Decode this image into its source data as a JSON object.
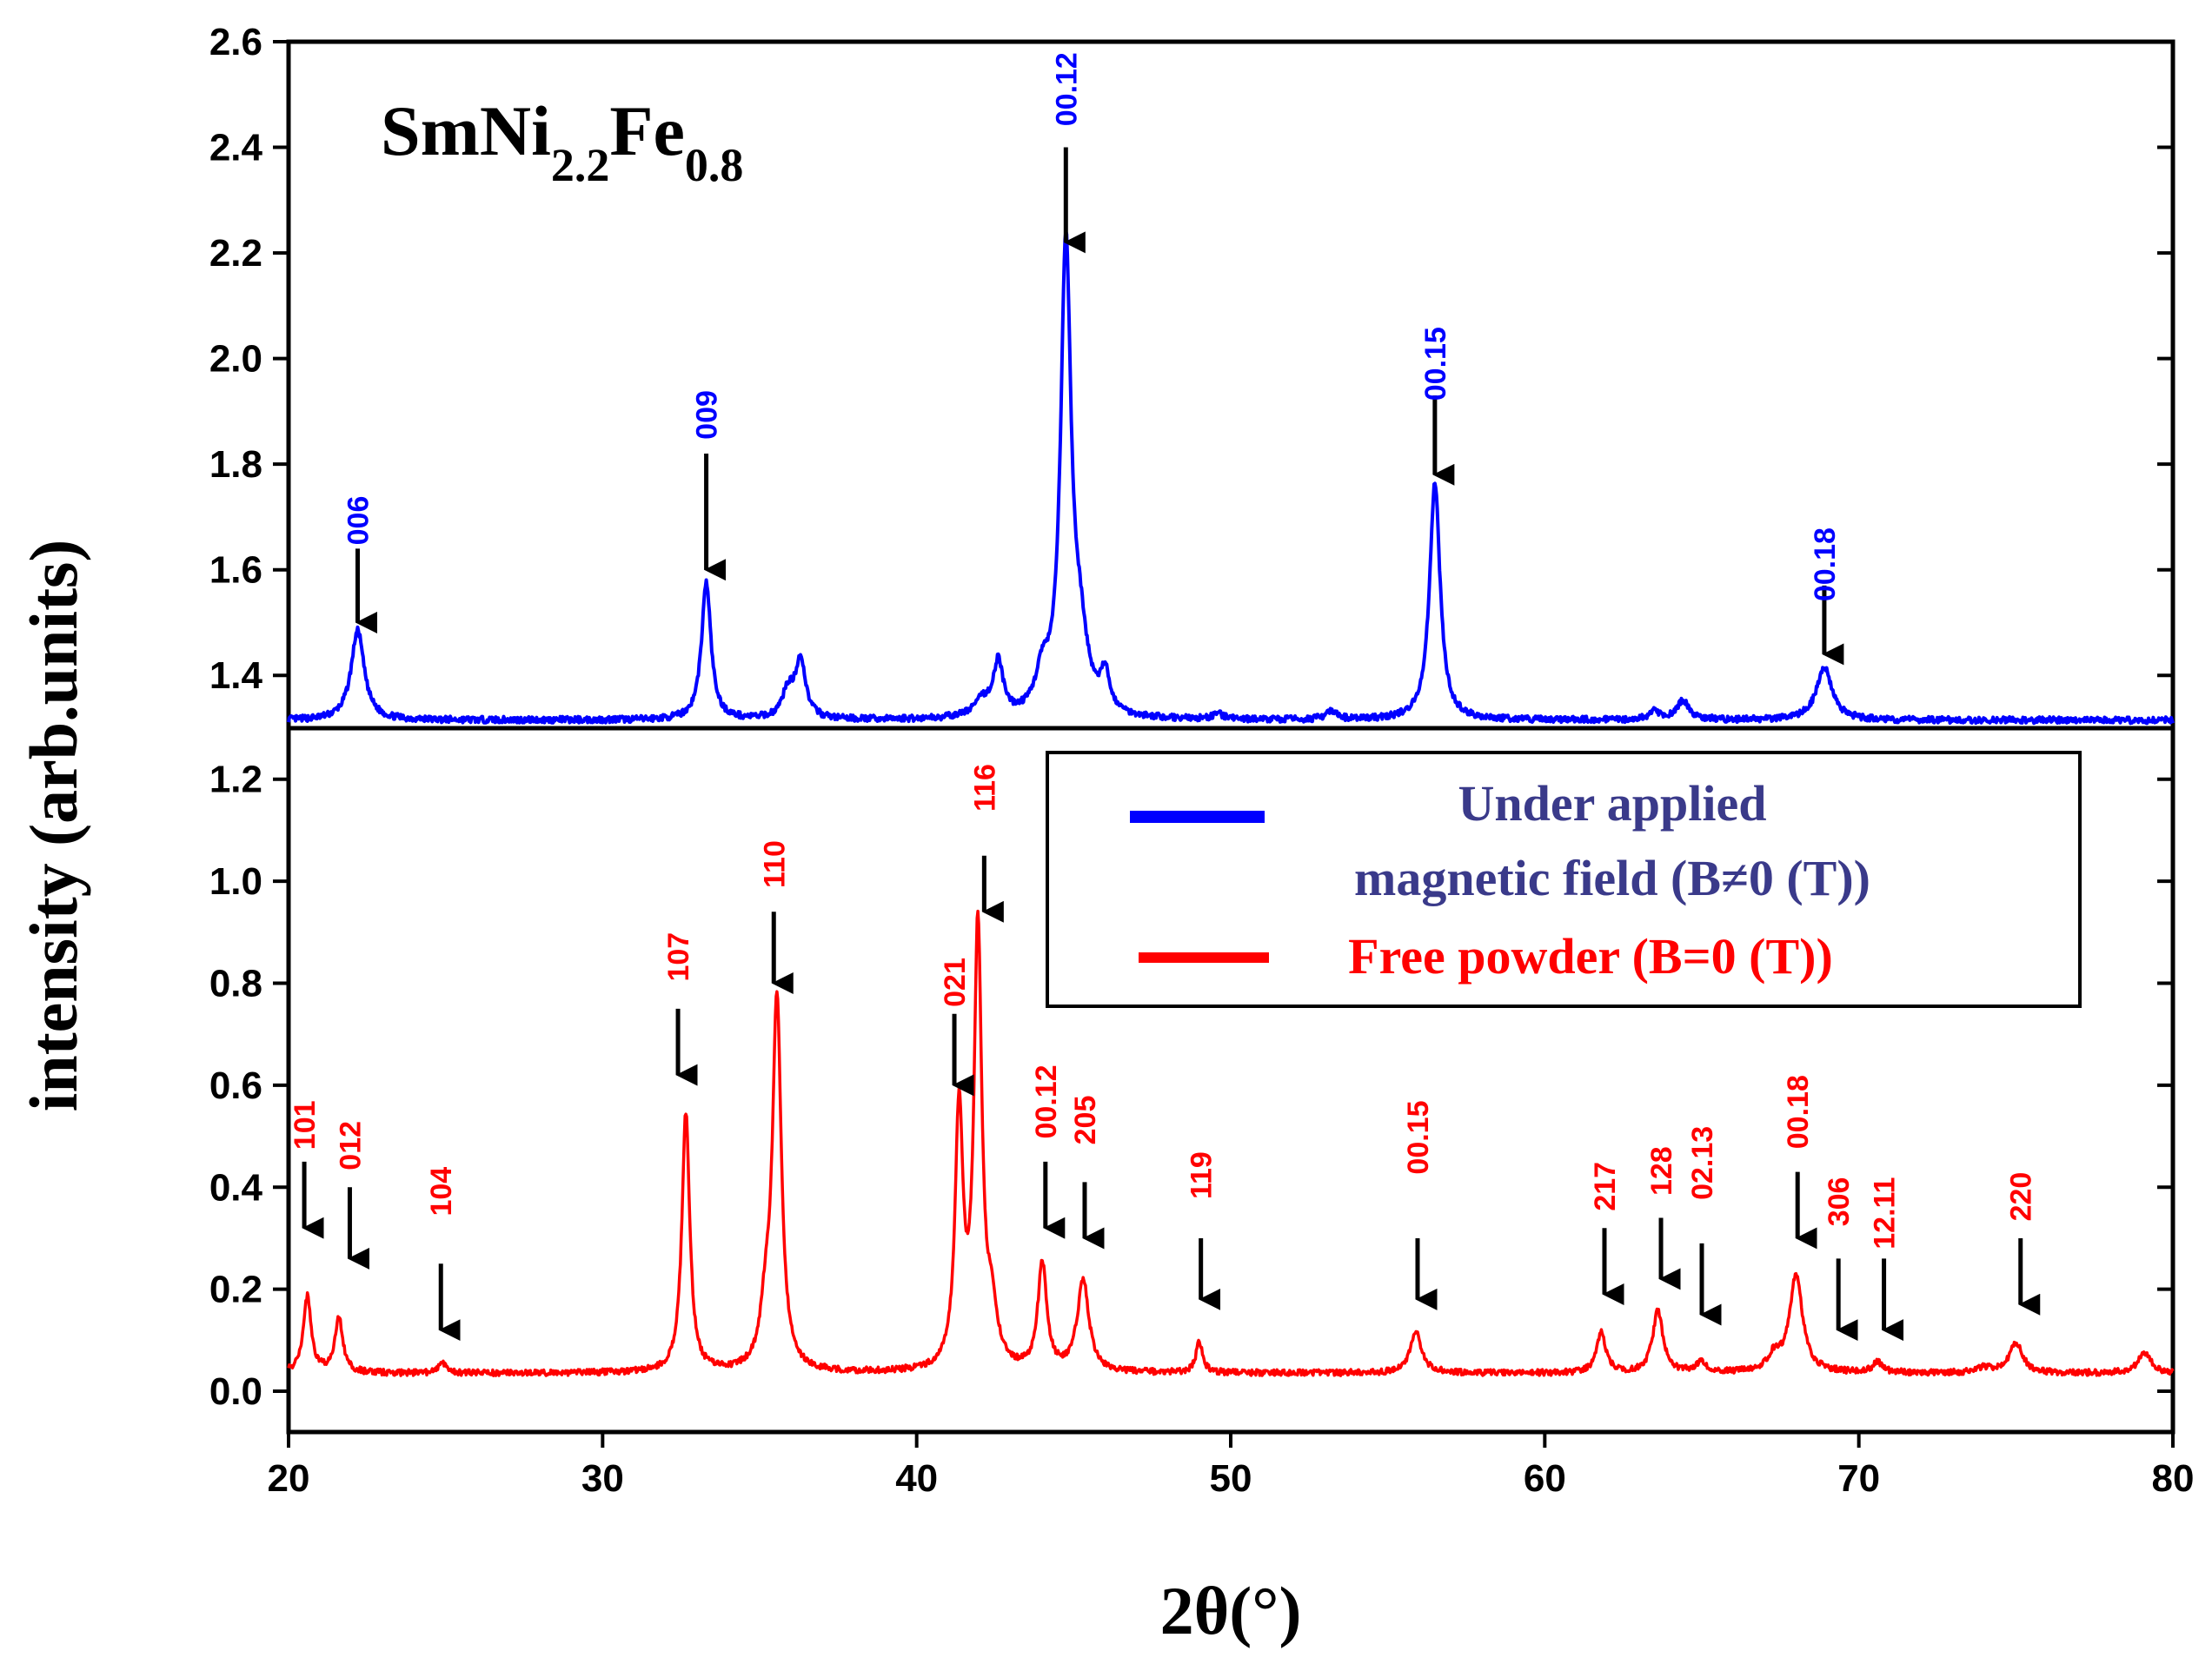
{
  "chart_data": {
    "type": "line",
    "title": "SmNi2.2Fe0.8",
    "title_parts": {
      "base1": "SmNi",
      "sub1": "2.2",
      "base2": "Fe",
      "sub2": "0.8"
    },
    "xlabel": "2θ(°)",
    "ylabel": "intensity (arb.units)",
    "xlim": [
      20,
      80
    ],
    "x_ticks": [
      "20",
      "30",
      "40",
      "50",
      "60",
      "70",
      "80"
    ],
    "panels": {
      "top": {
        "ylim": [
          1.3,
          2.6
        ],
        "y_ticks": [
          "1.4",
          "1.6",
          "1.8",
          "2.0",
          "2.2",
          "2.4",
          "2.6"
        ]
      },
      "bottom": {
        "ylim": [
          -0.08,
          1.3
        ],
        "y_ticks": [
          "0.0",
          "0.2",
          "0.4",
          "0.6",
          "0.8",
          "1.0",
          "1.2"
        ]
      }
    },
    "legend": {
      "position": "upper-right of bottom panel",
      "entries": [
        {
          "line1": "Under applied",
          "line2": "magnetic field (B≠0 (T))",
          "color": "#0000ff"
        },
        {
          "line1": "Free powder (B=0 (T))",
          "color": "#ff0000"
        }
      ]
    },
    "series": [
      {
        "name": "Under applied magnetic field (B≠0 (T))",
        "color": "#0000ff",
        "panel": "top",
        "baseline": 1.315,
        "noise": 0.006,
        "peaks": [
          {
            "x": 22.2,
            "h": 0.17,
            "w": 0.25
          },
          {
            "x": 33.3,
            "h": 0.26,
            "w": 0.18
          },
          {
            "x": 35.9,
            "h": 0.05,
            "w": 0.22
          },
          {
            "x": 36.3,
            "h": 0.11,
            "w": 0.2
          },
          {
            "x": 42.1,
            "h": 0.03,
            "w": 0.35
          },
          {
            "x": 42.6,
            "h": 0.1,
            "w": 0.18
          },
          {
            "x": 44.0,
            "h": 0.07,
            "w": 0.25
          },
          {
            "x": 44.75,
            "h": 0.88,
            "w": 0.2
          },
          {
            "x": 45.2,
            "h": 0.12,
            "w": 0.3
          },
          {
            "x": 46.0,
            "h": 0.07,
            "w": 0.18
          },
          {
            "x": 49.6,
            "h": 0.01,
            "w": 0.2
          },
          {
            "x": 53.2,
            "h": 0.015,
            "w": 0.2
          },
          {
            "x": 56.5,
            "h": 0.45,
            "w": 0.2
          },
          {
            "x": 63.5,
            "h": 0.015,
            "w": 0.2
          },
          {
            "x": 64.4,
            "h": 0.035,
            "w": 0.25
          },
          {
            "x": 68.9,
            "h": 0.1,
            "w": 0.3
          }
        ],
        "peak_labels": [
          {
            "text": "006",
            "x": 22.2,
            "y": 1.74,
            "arrow_from": 1.64,
            "arrow_to": 1.5
          },
          {
            "text": "009",
            "x": 33.3,
            "y": 1.94,
            "arrow_from": 1.82,
            "arrow_to": 1.6
          },
          {
            "text": "00.12",
            "x": 44.75,
            "y": 2.58,
            "arrow_from": 2.4,
            "arrow_to": 2.22
          },
          {
            "text": "00.15",
            "x": 56.5,
            "y": 2.06,
            "arrow_from": 1.93,
            "arrow_to": 1.78
          },
          {
            "text": "00.18",
            "x": 68.9,
            "y": 1.68,
            "arrow_from": 1.57,
            "arrow_to": 1.44
          }
        ]
      },
      {
        "name": "Free powder (B=0 (T))",
        "color": "#ff0000",
        "panel": "bottom",
        "baseline": 0.035,
        "noise": 0.006,
        "peaks": [
          {
            "x": 20.6,
            "h": 0.15,
            "w": 0.15
          },
          {
            "x": 21.6,
            "h": 0.11,
            "w": 0.15
          },
          {
            "x": 24.9,
            "h": 0.02,
            "w": 0.15
          },
          {
            "x": 32.65,
            "h": 0.51,
            "w": 0.15
          },
          {
            "x": 35.2,
            "h": 0.1,
            "w": 0.2
          },
          {
            "x": 35.55,
            "h": 0.72,
            "w": 0.17
          },
          {
            "x": 41.35,
            "h": 0.5,
            "w": 0.15
          },
          {
            "x": 41.95,
            "h": 0.86,
            "w": 0.15
          },
          {
            "x": 42.4,
            "h": 0.1,
            "w": 0.2
          },
          {
            "x": 44.0,
            "h": 0.21,
            "w": 0.17
          },
          {
            "x": 45.3,
            "h": 0.18,
            "w": 0.22
          },
          {
            "x": 49.0,
            "h": 0.06,
            "w": 0.13
          },
          {
            "x": 55.9,
            "h": 0.08,
            "w": 0.22
          },
          {
            "x": 61.8,
            "h": 0.08,
            "w": 0.17
          },
          {
            "x": 63.6,
            "h": 0.12,
            "w": 0.2
          },
          {
            "x": 65.0,
            "h": 0.02,
            "w": 0.2
          },
          {
            "x": 67.3,
            "h": 0.03,
            "w": 0.25
          },
          {
            "x": 68.0,
            "h": 0.19,
            "w": 0.25
          },
          {
            "x": 70.6,
            "h": 0.02,
            "w": 0.2
          },
          {
            "x": 74.0,
            "h": 0.01,
            "w": 0.3
          },
          {
            "x": 75.0,
            "h": 0.06,
            "w": 0.25
          },
          {
            "x": 79.1,
            "h": 0.04,
            "w": 0.25
          }
        ],
        "peak_labels": [
          {
            "text": "101",
            "x": 20.5,
            "y": 0.57,
            "arrow_from": 0.45,
            "arrow_to": 0.32
          },
          {
            "text": "012",
            "x": 21.95,
            "y": 0.53,
            "arrow_from": 0.4,
            "arrow_to": 0.26
          },
          {
            "text": "104",
            "x": 24.85,
            "y": 0.44,
            "arrow_from": 0.25,
            "arrow_to": 0.12
          },
          {
            "text": "107",
            "x": 32.4,
            "y": 0.9,
            "arrow_from": 0.75,
            "arrow_to": 0.62
          },
          {
            "text": "110",
            "x": 35.45,
            "y": 1.08,
            "arrow_from": 0.94,
            "arrow_to": 0.8
          },
          {
            "text": "021",
            "x": 41.2,
            "y": 0.85,
            "arrow_from": 0.74,
            "arrow_to": 0.6
          },
          {
            "text": "116",
            "x": 42.15,
            "y": 1.23,
            "arrow_from": 1.05,
            "arrow_to": 0.94
          },
          {
            "text": "00.12",
            "x": 44.1,
            "y": 0.64,
            "arrow_from": 0.45,
            "arrow_to": 0.32
          },
          {
            "text": "205",
            "x": 45.35,
            "y": 0.58,
            "arrow_from": 0.41,
            "arrow_to": 0.3
          },
          {
            "text": "119",
            "x": 49.05,
            "y": 0.47,
            "arrow_from": 0.3,
            "arrow_to": 0.18
          },
          {
            "text": "00.15",
            "x": 55.95,
            "y": 0.57,
            "arrow_from": 0.3,
            "arrow_to": 0.18
          },
          {
            "text": "217",
            "x": 61.9,
            "y": 0.45,
            "arrow_from": 0.32,
            "arrow_to": 0.19
          },
          {
            "text": "128",
            "x": 63.7,
            "y": 0.48,
            "arrow_from": 0.34,
            "arrow_to": 0.22
          },
          {
            "text": "02.13",
            "x": 65.0,
            "y": 0.52,
            "arrow_from": 0.29,
            "arrow_to": 0.15
          },
          {
            "text": "00.18",
            "x": 68.05,
            "y": 0.62,
            "arrow_from": 0.43,
            "arrow_to": 0.3
          },
          {
            "text": "306",
            "x": 69.35,
            "y": 0.42,
            "arrow_from": 0.26,
            "arrow_to": 0.12
          },
          {
            "text": "12.11",
            "x": 70.8,
            "y": 0.42,
            "arrow_from": 0.26,
            "arrow_to": 0.12
          },
          {
            "text": "220",
            "x": 75.15,
            "y": 0.43,
            "arrow_from": 0.3,
            "arrow_to": 0.17
          }
        ]
      }
    ]
  }
}
